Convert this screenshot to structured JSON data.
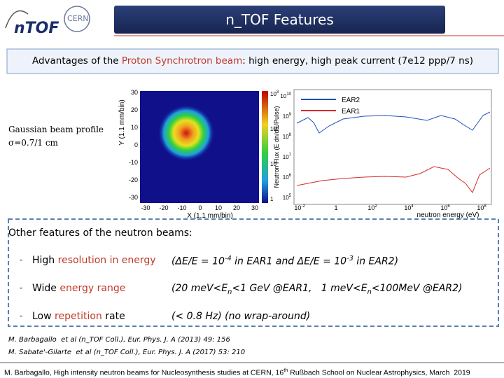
{
  "header": {
    "title": "n_TOF Features",
    "logo_ntof": "nTOF",
    "logo_cern": "CERN"
  },
  "banner": {
    "lead": "Advantages of the ",
    "highlight": "Proton Synchrotron beam",
    "rest": ": high energy, high peak current (7e12 ppp/7 ns)"
  },
  "beam_profile": {
    "label": "Gaussian beam profile",
    "sigma": "σ=0.7/1 cm",
    "y_axis": "Y (1.1 mm/bin)",
    "x_axis": "X (1.1 mm/bin)",
    "ticks": [
      "-30",
      "-20",
      "-10",
      "0",
      "10",
      "20",
      "30"
    ],
    "colorbar_ticks": [
      {
        "base": "10",
        "exp": "3"
      },
      {
        "base": "10",
        "exp": "2"
      },
      {
        "base": "10",
        "exp": ""
      },
      {
        "base": "1",
        "exp": ""
      }
    ]
  },
  "flux_plot": {
    "y_axis": "Neutron Flux (E dn/dE/Pulse)",
    "x_axis": "neutron energy (eV)",
    "legend": [
      {
        "name": "EAR2",
        "color": "#1f4fc0"
      },
      {
        "name": "EAR1",
        "color": "#d42a2a"
      }
    ],
    "x_ticks": [
      {
        "base": "10",
        "exp": "-2"
      },
      {
        "base": "1",
        "exp": ""
      },
      {
        "base": "10",
        "exp": "2"
      },
      {
        "base": "10",
        "exp": "4"
      },
      {
        "base": "10",
        "exp": "6"
      },
      {
        "base": "10",
        "exp": "8"
      }
    ],
    "y_ticks": [
      {
        "base": "10",
        "exp": "10"
      },
      {
        "base": "10",
        "exp": "9"
      },
      {
        "base": "10",
        "exp": "8"
      },
      {
        "base": "10",
        "exp": "7"
      },
      {
        "base": "10",
        "exp": "6"
      },
      {
        "base": "10",
        "exp": "5"
      }
    ]
  },
  "features": {
    "heading": "Other features of the neutron beams:",
    "bullet": "-",
    "rows": [
      {
        "feature": [
          {
            "text": "High "
          },
          {
            "text": "resolution in energy",
            "style": "hl"
          }
        ],
        "detail": [
          {
            "text": "(ΔE/E = 10"
          },
          {
            "text": "-4",
            "style": "sup"
          },
          {
            "text": " in EAR1 and ΔE/E = 10"
          },
          {
            "text": "-3",
            "style": "sup"
          },
          {
            "text": " in EAR2)"
          }
        ]
      },
      {
        "feature": [
          {
            "text": "Wide "
          },
          {
            "text": "energy range",
            "style": "hl"
          }
        ],
        "detail": [
          {
            "text": "(20 meV<E"
          },
          {
            "text": "n",
            "style": "sub"
          },
          {
            "text": "<1 GeV @EAR1,   1 meV<E"
          },
          {
            "text": "n",
            "style": "sub"
          },
          {
            "text": "<100MeV @EAR2)"
          }
        ]
      },
      {
        "feature": [
          {
            "text": "Low "
          },
          {
            "text": "repetition",
            "style": "hl"
          },
          {
            "text": " rate"
          }
        ],
        "detail": [
          {
            "text": "(< 0.8 Hz) (no wrap-around)"
          }
        ]
      }
    ]
  },
  "references": [
    "M. Barbagallo  et al (n_TOF Coll.), Eur. Phys. J. A (2013) 49: 156",
    "M. Sabate'-Gilarte  et al (n_TOF Coll.), Eur. Phys. J. A (2017) 53: 210"
  ],
  "footer": [
    {
      "text": "M. Barbagallo, High intensity neutron beams for Nucleosynthesis studies at CERN, 16"
    },
    {
      "text": "th",
      "style": "sup"
    },
    {
      "text": " Rußbach School on Nuclear Astrophysics, March  2019"
    }
  ]
}
